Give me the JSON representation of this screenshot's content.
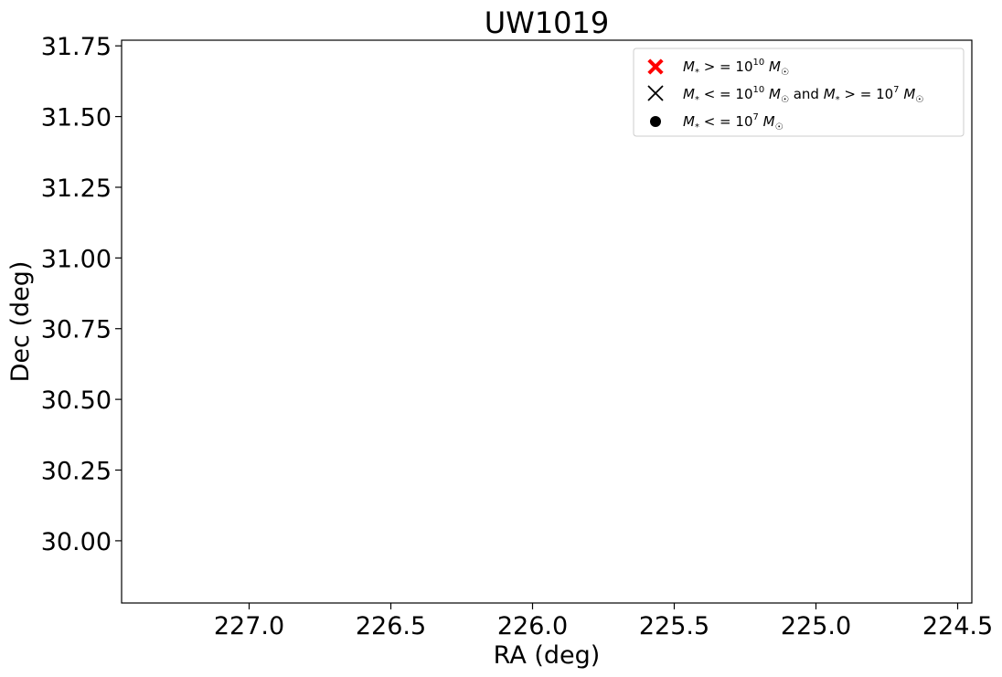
{
  "chart_data": {
    "type": "scatter",
    "title": "UW1019",
    "xlabel": "RA (deg)",
    "ylabel": "Dec (deg)",
    "xlim": [
      227.45,
      224.45
    ],
    "ylim": [
      29.78,
      31.77
    ],
    "x_inverted": true,
    "xticks": [
      227.0,
      226.5,
      226.0,
      225.5,
      225.0,
      224.5
    ],
    "xtick_labels": [
      "227.0",
      "226.5",
      "226.0",
      "225.5",
      "225.0",
      "224.5"
    ],
    "yticks": [
      30.0,
      30.25,
      30.5,
      30.75,
      31.0,
      31.25,
      31.5,
      31.75
    ],
    "ytick_labels": [
      "30.00",
      "30.25",
      "30.50",
      "30.75",
      "31.00",
      "31.25",
      "31.50",
      "31.75"
    ],
    "grid": false,
    "legend_position": "top-right",
    "series": [
      {
        "name": "M* >= 10^10 M☉",
        "marker": "filled-x",
        "color": "#ff0000",
        "points": []
      },
      {
        "name": "M* <= 10^10 M☉ and M* >= 10^7 M☉",
        "marker": "x",
        "color": "#000000",
        "points": []
      },
      {
        "name": "M* <= 10^7 M☉",
        "marker": "circle",
        "color": "#000000",
        "points": []
      }
    ]
  }
}
